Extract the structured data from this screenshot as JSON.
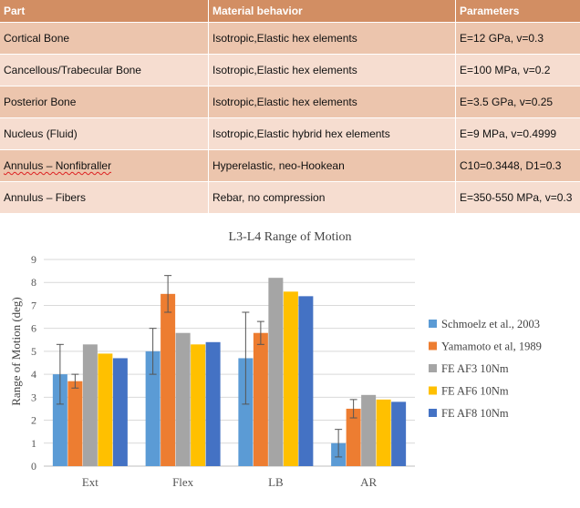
{
  "table": {
    "headers": [
      "Part",
      "Material behavior",
      "Parameters"
    ],
    "rows": [
      [
        "Cortical Bone",
        "Isotropic,Elastic hex elements",
        "E=12 GPa, v=0.3"
      ],
      [
        "Cancellous/Trabecular Bone",
        "Isotropic,Elastic hex elements",
        "E=100 MPa, v=0.2"
      ],
      [
        "Posterior Bone",
        "Isotropic,Elastic hex elements",
        "E=3.5 GPa, v=0.25"
      ],
      [
        "Nucleus (Fluid)",
        "Isotropic,Elastic hybrid hex elements",
        "E=9 MPa, v=0.4999"
      ],
      [
        "Annulus – Nonfibraller",
        "Hyperelastic, neo-Hookean",
        "C10=0.3448, D1=0.3"
      ],
      [
        "Annulus – Fibers",
        "Rebar, no compression",
        "E=350-550 MPa, v=0.3"
      ]
    ]
  },
  "chart_data": {
    "type": "bar",
    "title": "L3-L4  Range of Motion",
    "ylabel": "Range of Motion (deg)",
    "xlabel": "",
    "ylim": [
      0,
      9
    ],
    "yticks": [
      0,
      1,
      2,
      3,
      4,
      5,
      6,
      7,
      8,
      9
    ],
    "categories": [
      "Ext",
      "Flex",
      "LB",
      "AR"
    ],
    "grid": true,
    "legend_position": "right",
    "series": [
      {
        "name": "Schmoelz et al., 2003",
        "color": "#5b9bd5",
        "values": [
          4.0,
          5.0,
          4.7,
          1.0
        ],
        "error": [
          1.3,
          1.0,
          2.0,
          0.6
        ]
      },
      {
        "name": "Yamamoto et al, 1989",
        "color": "#ed7d31",
        "values": [
          3.7,
          7.5,
          5.8,
          2.5
        ],
        "error": [
          0.3,
          0.8,
          0.5,
          0.4
        ]
      },
      {
        "name": "FE  AF3  10Nm",
        "color": "#a5a5a5",
        "values": [
          5.3,
          5.8,
          8.2,
          3.1
        ]
      },
      {
        "name": "FE  AF6  10Nm",
        "color": "#ffc000",
        "values": [
          4.9,
          5.3,
          7.6,
          2.9
        ]
      },
      {
        "name": "FE  AF8  10Nm",
        "color": "#4472c4",
        "values": [
          4.7,
          5.4,
          7.4,
          2.8
        ]
      }
    ]
  }
}
